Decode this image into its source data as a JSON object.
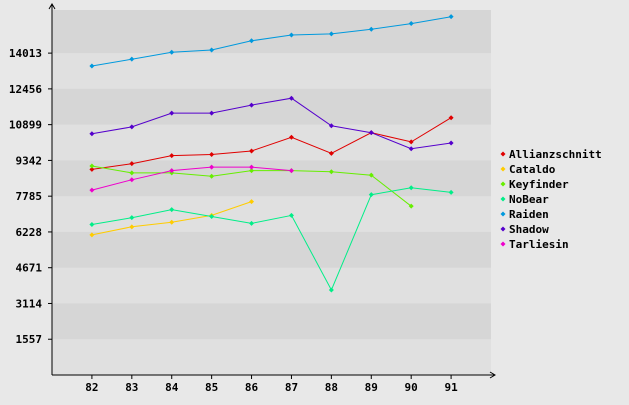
{
  "chart_data": {
    "type": "line",
    "title": "",
    "xlabel": "",
    "ylabel": "",
    "x": [
      82,
      83,
      84,
      85,
      86,
      87,
      88,
      89,
      90,
      91
    ],
    "yticks": [
      1557,
      3114,
      4671,
      6228,
      7785,
      9342,
      10899,
      12456,
      14013
    ],
    "ylim": [
      0,
      15890
    ],
    "xlim": [
      81,
      92
    ],
    "grid": "horizontal bands",
    "legend_position": "right",
    "series": [
      {
        "name": "Allianzschnitt",
        "color": "#e00000",
        "x": [
          82,
          83,
          84,
          85,
          86,
          87,
          88,
          89,
          90,
          91
        ],
        "values": [
          8950,
          9200,
          9550,
          9600,
          9750,
          10350,
          9650,
          10550,
          10150,
          11200
        ]
      },
      {
        "name": "Cataldo",
        "color": "#ffcc00",
        "x": [
          82,
          83,
          84,
          85,
          86
        ],
        "values": [
          6100,
          6450,
          6650,
          6950,
          7550
        ]
      },
      {
        "name": "Keyfinder",
        "color": "#66ee00",
        "x": [
          82,
          83,
          84,
          85,
          86,
          87,
          88,
          89,
          90
        ],
        "values": [
          9100,
          8800,
          8800,
          8650,
          8900,
          8900,
          8850,
          8700,
          7350
        ]
      },
      {
        "name": "NoBear",
        "color": "#00ee88",
        "x": [
          82,
          83,
          84,
          85,
          86,
          87,
          88,
          89,
          90,
          91
        ],
        "values": [
          6550,
          6850,
          7200,
          6900,
          6600,
          6950,
          3700,
          7850,
          8150,
          7950
        ]
      },
      {
        "name": "Raiden",
        "color": "#0099dd",
        "x": [
          82,
          83,
          84,
          85,
          86,
          87,
          88,
          89,
          90,
          91
        ],
        "values": [
          13450,
          13750,
          14050,
          14150,
          14550,
          14800,
          14850,
          15050,
          15300,
          15600
        ]
      },
      {
        "name": "Shadow",
        "color": "#5500cc",
        "x": [
          82,
          83,
          84,
          85,
          86,
          87,
          88,
          89,
          90,
          91
        ],
        "values": [
          10500,
          10800,
          11400,
          11400,
          11750,
          12050,
          10850,
          10550,
          9850,
          10100
        ]
      },
      {
        "name": "Tarliesin",
        "color": "#ee00cc",
        "x": [
          82,
          83,
          84,
          85,
          86,
          87
        ],
        "values": [
          8050,
          8500,
          8900,
          9050,
          9050,
          8900
        ]
      }
    ]
  }
}
